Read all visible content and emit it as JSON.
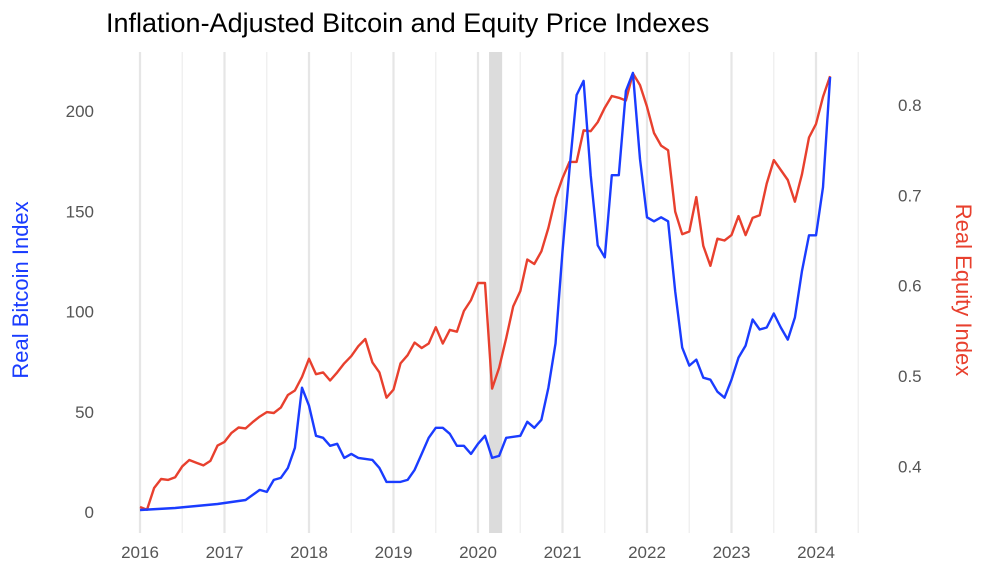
{
  "chart_data": {
    "type": "line",
    "title": "Inflation-Adjusted Bitcoin and Equity Price Indexes",
    "xlabel": "",
    "x_ticks": [
      "2016",
      "2017",
      "2018",
      "2019",
      "2020",
      "2021",
      "2022",
      "2023",
      "2024"
    ],
    "xlim": [
      "2016-01",
      "2024-07"
    ],
    "grid": "vertical lines at years and half-years",
    "legend": "none",
    "shaded_periods": [
      [
        "2020-03",
        "2020-04"
      ]
    ],
    "left_axis": {
      "label": "Real Bitcoin Index",
      "ylim": [
        0,
        220
      ],
      "ticks": [
        "0",
        "50",
        "100",
        "150",
        "200"
      ],
      "color": "#1a3cff"
    },
    "right_axis": {
      "label": "Real Equity Index",
      "ylim": [
        0.345,
        0.843
      ],
      "ticks": [
        "0.4",
        "0.5",
        "0.6",
        "0.7",
        "0.8"
      ],
      "color": "#e8402e"
    },
    "series": [
      {
        "axis": "left",
        "color": "#1a3cff",
        "points": [
          [
            "2016-01",
            1
          ],
          [
            "2016-06",
            2
          ],
          [
            "2016-09",
            3
          ],
          [
            "2016-12",
            4
          ],
          [
            "2017-02",
            5
          ],
          [
            "2017-04",
            6
          ],
          [
            "2017-06",
            11
          ],
          [
            "2017-07",
            10
          ],
          [
            "2017-08",
            16
          ],
          [
            "2017-09",
            17
          ],
          [
            "2017-10",
            22
          ],
          [
            "2017-11",
            32
          ],
          [
            "2017-12",
            62
          ],
          [
            "2018-01",
            53
          ],
          [
            "2018-02",
            38
          ],
          [
            "2018-03",
            37
          ],
          [
            "2018-04",
            33
          ],
          [
            "2018-05",
            34
          ],
          [
            "2018-06",
            27
          ],
          [
            "2018-07",
            29
          ],
          [
            "2018-08",
            27
          ],
          [
            "2018-10",
            26
          ],
          [
            "2018-11",
            22
          ],
          [
            "2018-12",
            15
          ],
          [
            "2019-02",
            15
          ],
          [
            "2019-03",
            16
          ],
          [
            "2019-04",
            21
          ],
          [
            "2019-05",
            29
          ],
          [
            "2019-06",
            37
          ],
          [
            "2019-07",
            42
          ],
          [
            "2019-08",
            42
          ],
          [
            "2019-09",
            39
          ],
          [
            "2019-10",
            33
          ],
          [
            "2019-11",
            33
          ],
          [
            "2019-12",
            29
          ],
          [
            "2020-01",
            34
          ],
          [
            "2020-02",
            38
          ],
          [
            "2020-03",
            27
          ],
          [
            "2020-04",
            28
          ],
          [
            "2020-05",
            37
          ],
          [
            "2020-07",
            38
          ],
          [
            "2020-08",
            45
          ],
          [
            "2020-09",
            42
          ],
          [
            "2020-10",
            46
          ],
          [
            "2020-11",
            62
          ],
          [
            "2020-12",
            84
          ],
          [
            "2021-01",
            130
          ],
          [
            "2021-02",
            171
          ],
          [
            "2021-03",
            208
          ],
          [
            "2021-04",
            215
          ],
          [
            "2021-05",
            168
          ],
          [
            "2021-06",
            133
          ],
          [
            "2021-07",
            127
          ],
          [
            "2021-08",
            168
          ],
          [
            "2021-09",
            168
          ],
          [
            "2021-10",
            210
          ],
          [
            "2021-11",
            219
          ],
          [
            "2021-12",
            176
          ],
          [
            "2022-01",
            147
          ],
          [
            "2022-02",
            145
          ],
          [
            "2022-03",
            147
          ],
          [
            "2022-04",
            145
          ],
          [
            "2022-05",
            110
          ],
          [
            "2022-06",
            82
          ],
          [
            "2022-07",
            73
          ],
          [
            "2022-08",
            76
          ],
          [
            "2022-09",
            67
          ],
          [
            "2022-10",
            66
          ],
          [
            "2022-11",
            60
          ],
          [
            "2022-12",
            57
          ],
          [
            "2023-01",
            66
          ],
          [
            "2023-02",
            77
          ],
          [
            "2023-03",
            83
          ],
          [
            "2023-04",
            96
          ],
          [
            "2023-05",
            91
          ],
          [
            "2023-06",
            92
          ],
          [
            "2023-07",
            99
          ],
          [
            "2023-08",
            92
          ],
          [
            "2023-09",
            86
          ],
          [
            "2023-10",
            97
          ],
          [
            "2023-11",
            120
          ],
          [
            "2023-12",
            138
          ],
          [
            "2024-01",
            138
          ],
          [
            "2024-02",
            162
          ],
          [
            "2024-03",
            217
          ]
        ]
      },
      {
        "axis": "right",
        "color": "#e8402e",
        "points": [
          [
            "2016-01",
            0.355
          ],
          [
            "2016-02",
            0.352
          ],
          [
            "2016-03",
            0.376
          ],
          [
            "2016-04",
            0.386
          ],
          [
            "2016-05",
            0.385
          ],
          [
            "2016-06",
            0.388
          ],
          [
            "2016-07",
            0.4
          ],
          [
            "2016-08",
            0.407
          ],
          [
            "2016-09",
            0.404
          ],
          [
            "2016-10",
            0.401
          ],
          [
            "2016-11",
            0.406
          ],
          [
            "2016-12",
            0.423
          ],
          [
            "2017-01",
            0.427
          ],
          [
            "2017-02",
            0.437
          ],
          [
            "2017-03",
            0.443
          ],
          [
            "2017-04",
            0.442
          ],
          [
            "2017-05",
            0.449
          ],
          [
            "2017-06",
            0.455
          ],
          [
            "2017-07",
            0.46
          ],
          [
            "2017-08",
            0.459
          ],
          [
            "2017-09",
            0.465
          ],
          [
            "2017-10",
            0.479
          ],
          [
            "2017-11",
            0.484
          ],
          [
            "2017-12",
            0.499
          ],
          [
            "2018-01",
            0.519
          ],
          [
            "2018-02",
            0.502
          ],
          [
            "2018-03",
            0.504
          ],
          [
            "2018-04",
            0.495
          ],
          [
            "2018-05",
            0.504
          ],
          [
            "2018-06",
            0.514
          ],
          [
            "2018-07",
            0.522
          ],
          [
            "2018-08",
            0.533
          ],
          [
            "2018-09",
            0.541
          ],
          [
            "2018-10",
            0.515
          ],
          [
            "2018-11",
            0.504
          ],
          [
            "2018-12",
            0.476
          ],
          [
            "2019-01",
            0.485
          ],
          [
            "2019-02",
            0.514
          ],
          [
            "2019-03",
            0.523
          ],
          [
            "2019-04",
            0.537
          ],
          [
            "2019-05",
            0.531
          ],
          [
            "2019-06",
            0.536
          ],
          [
            "2019-07",
            0.554
          ],
          [
            "2019-08",
            0.536
          ],
          [
            "2019-09",
            0.551
          ],
          [
            "2019-10",
            0.549
          ],
          [
            "2019-11",
            0.572
          ],
          [
            "2019-12",
            0.584
          ],
          [
            "2020-01",
            0.603
          ],
          [
            "2020-02",
            0.603
          ],
          [
            "2020-03",
            0.486
          ],
          [
            "2020-04",
            0.509
          ],
          [
            "2020-05",
            0.542
          ],
          [
            "2020-06",
            0.577
          ],
          [
            "2020-07",
            0.594
          ],
          [
            "2020-08",
            0.629
          ],
          [
            "2020-09",
            0.624
          ],
          [
            "2020-10",
            0.638
          ],
          [
            "2020-11",
            0.664
          ],
          [
            "2020-12",
            0.697
          ],
          [
            "2021-01",
            0.719
          ],
          [
            "2021-02",
            0.737
          ],
          [
            "2021-03",
            0.737
          ],
          [
            "2021-04",
            0.772
          ],
          [
            "2021-05",
            0.771
          ],
          [
            "2021-06",
            0.781
          ],
          [
            "2021-07",
            0.797
          ],
          [
            "2021-08",
            0.81
          ],
          [
            "2021-09",
            0.808
          ],
          [
            "2021-10",
            0.805
          ],
          [
            "2021-11",
            0.835
          ],
          [
            "2021-12",
            0.822
          ],
          [
            "2022-01",
            0.798
          ],
          [
            "2022-02",
            0.769
          ],
          [
            "2022-03",
            0.755
          ],
          [
            "2022-04",
            0.75
          ],
          [
            "2022-05",
            0.682
          ],
          [
            "2022-06",
            0.657
          ],
          [
            "2022-07",
            0.66
          ],
          [
            "2022-08",
            0.698
          ],
          [
            "2022-09",
            0.644
          ],
          [
            "2022-10",
            0.622
          ],
          [
            "2022-11",
            0.652
          ],
          [
            "2022-12",
            0.65
          ],
          [
            "2023-01",
            0.656
          ],
          [
            "2023-02",
            0.677
          ],
          [
            "2023-03",
            0.656
          ],
          [
            "2023-04",
            0.675
          ],
          [
            "2023-05",
            0.678
          ],
          [
            "2023-06",
            0.713
          ],
          [
            "2023-07",
            0.739
          ],
          [
            "2023-08",
            0.728
          ],
          [
            "2023-09",
            0.717
          ],
          [
            "2023-10",
            0.693
          ],
          [
            "2023-11",
            0.723
          ],
          [
            "2023-12",
            0.764
          ],
          [
            "2024-01",
            0.779
          ],
          [
            "2024-02",
            0.809
          ],
          [
            "2024-03",
            0.832
          ]
        ]
      }
    ]
  }
}
